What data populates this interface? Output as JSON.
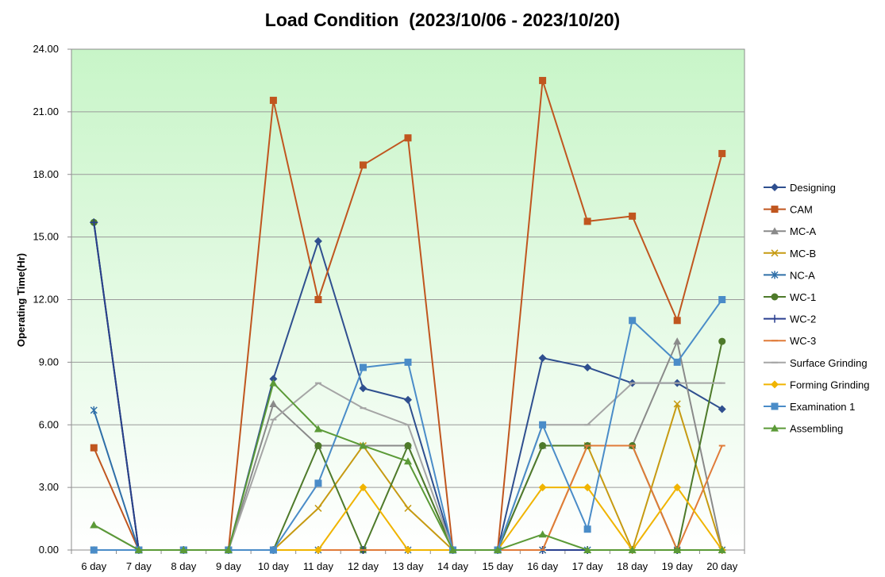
{
  "chart_data": {
    "type": "line",
    "title": "Load Condition  (2023/10/06 - 2023/10/20)",
    "xlabel": "",
    "ylabel": "Operating Time(Hr)",
    "ylim": [
      0,
      24
    ],
    "y_ticks": [
      "0.00",
      "3.00",
      "6.00",
      "9.00",
      "12.00",
      "15.00",
      "18.00",
      "21.00",
      "24.00"
    ],
    "categories": [
      "6 day",
      "7 day",
      "8 day",
      "9 day",
      "10 day",
      "11 day",
      "12 day",
      "13 day",
      "14 day",
      "15 day",
      "16 day",
      "17 day",
      "18 day",
      "19 day",
      "20 day"
    ],
    "grid": true,
    "legend_position": "right",
    "background_gradient": [
      "#c8f5c8",
      "#ffffff"
    ],
    "series": [
      {
        "name": "Designing",
        "color": "#2F4F8F",
        "marker": "diamond",
        "values": [
          15.7,
          0,
          0,
          0,
          8.2,
          14.8,
          7.75,
          7.2,
          0,
          0,
          9.2,
          8.75,
          8.0,
          8.0,
          6.75
        ]
      },
      {
        "name": "CAM",
        "color": "#C0561F",
        "marker": "square",
        "values": [
          4.9,
          0,
          0,
          0,
          21.55,
          12.0,
          18.45,
          19.75,
          0,
          0,
          22.5,
          15.75,
          16.0,
          11.0,
          19.0
        ]
      },
      {
        "name": "MC-A",
        "color": "#8A8A8A",
        "marker": "triangle",
        "values": [
          1.2,
          0,
          0,
          0,
          7.0,
          5.0,
          5.0,
          5.0,
          0,
          0,
          5.0,
          5.0,
          5.0,
          10.0,
          0
        ]
      },
      {
        "name": "MC-B",
        "color": "#C69A12",
        "marker": "x",
        "values": [
          0,
          0,
          0,
          0,
          0,
          2.0,
          5.0,
          2.0,
          0,
          0,
          0,
          5.0,
          0,
          7.0,
          0
        ]
      },
      {
        "name": "NC-A",
        "color": "#2F6FA8",
        "marker": "star",
        "values": [
          6.7,
          0,
          0,
          0,
          0,
          0,
          0,
          0,
          0,
          0,
          0,
          0,
          0,
          0,
          0
        ]
      },
      {
        "name": "WC-1",
        "color": "#4E7A2A",
        "marker": "circle",
        "values": [
          15.7,
          0,
          0,
          0,
          0,
          5.0,
          0,
          5.0,
          0,
          0,
          5.0,
          5.0,
          5.0,
          0,
          10.0
        ]
      },
      {
        "name": "WC-2",
        "color": "#2A3F8F",
        "marker": "plus",
        "values": [
          15.7,
          0,
          0,
          0,
          0,
          0,
          0,
          0,
          0,
          0,
          0,
          0,
          0,
          0,
          0
        ]
      },
      {
        "name": "WC-3",
        "color": "#E07B39",
        "marker": "dash",
        "values": [
          0,
          0,
          0,
          0,
          0,
          0,
          0,
          0,
          0,
          0,
          0,
          5.0,
          5.0,
          0,
          5.0
        ]
      },
      {
        "name": "Surface Grinding",
        "color": "#A5A5A5",
        "marker": "dash",
        "values": [
          0,
          0,
          0,
          0,
          6.25,
          8.0,
          6.8,
          6.0,
          0,
          0,
          6.0,
          6.0,
          8.0,
          8.0,
          8.0
        ]
      },
      {
        "name": "Forming Grinding",
        "color": "#F0B400",
        "marker": "diamond",
        "values": [
          0,
          0,
          0,
          0,
          0,
          0,
          3.0,
          0,
          0,
          0,
          3.0,
          3.0,
          0,
          3.0,
          0
        ]
      },
      {
        "name": "Examination 1",
        "color": "#4A8CC8",
        "marker": "square",
        "values": [
          0,
          0,
          0,
          0,
          0,
          3.2,
          8.75,
          9.0,
          0,
          0,
          6.0,
          1.0,
          11.0,
          9.0,
          12.0
        ]
      },
      {
        "name": "Assembling",
        "color": "#5B9A37",
        "marker": "triangle",
        "values": [
          1.2,
          0,
          0,
          0,
          8.0,
          5.8,
          5.0,
          4.25,
          0,
          0,
          0.75,
          0,
          0,
          0,
          0
        ]
      }
    ]
  }
}
